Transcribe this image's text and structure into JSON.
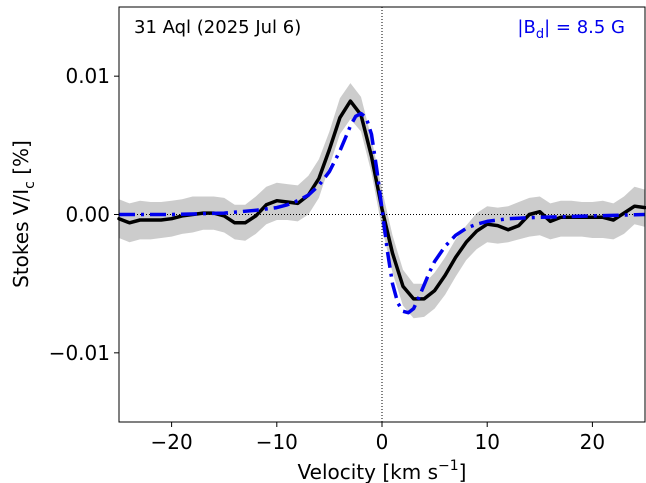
{
  "chart_data": {
    "type": "line",
    "annotations": {
      "star": "31 Aql (2025 Jul 6)",
      "field": "|B_d| = 8.5 G",
      "field_prefix": "|B",
      "field_sub": "d",
      "field_suffix": "| = 8.5 G"
    },
    "xlabel": "Velocity [km s⁻¹]",
    "xlabel_main": "Velocity [km s",
    "xlabel_sup": "−1",
    "xlabel_end": "]",
    "ylabel": "Stokes V/I_c [%]",
    "ylabel_main": "Stokes V/I",
    "ylabel_sub": "c",
    "ylabel_end": " [%]",
    "xlim": [
      -25,
      25
    ],
    "ylim": [
      -0.015,
      0.015
    ],
    "xticks": [
      -20,
      -10,
      0,
      10,
      20
    ],
    "xtick_labels": [
      "−20",
      "−10",
      "0",
      "10",
      "20"
    ],
    "yticks": [
      0.01,
      0.0,
      -0.01
    ],
    "ytick_labels": [
      "0.01",
      "0.00",
      "−0.01"
    ],
    "grid": false,
    "reference_lines": {
      "x": 0,
      "y": 0
    },
    "series": [
      {
        "kind": "band",
        "color": "#cccccc",
        "x": [
          -25,
          -24,
          -23,
          -22,
          -21,
          -20,
          -19,
          -18,
          -17,
          -16,
          -15,
          -14,
          -13,
          -12,
          -11,
          -10,
          -9,
          -8,
          -7,
          -6,
          -5,
          -4,
          -3,
          -2,
          -1,
          0,
          1,
          2,
          3,
          4,
          5,
          6,
          7,
          8,
          9,
          10,
          11,
          12,
          13,
          14,
          15,
          16,
          17,
          18,
          19,
          20,
          21,
          22,
          23,
          24,
          25
        ],
        "upper": [
          0.0011,
          0.0008,
          0.001,
          0.0009,
          0.0009,
          0.001,
          0.0011,
          0.0013,
          0.0013,
          0.0013,
          0.0012,
          0.0007,
          0.0007,
          0.0013,
          0.002,
          0.0023,
          0.0022,
          0.0021,
          0.0028,
          0.004,
          0.006,
          0.0084,
          0.0095,
          0.0085,
          0.0055,
          0.0018,
          -0.0015,
          -0.004,
          -0.005,
          -0.005,
          -0.0042,
          -0.0031,
          -0.0018,
          -0.0008,
          0.0001,
          0.0006,
          0.0005,
          0.0006,
          0.0009,
          0.0012,
          0.0013,
          0.0008,
          0.001,
          0.001,
          0.0009,
          0.0009,
          0.001,
          0.0008,
          0.0013,
          0.002,
          0.0018
        ],
        "lower": [
          -0.0017,
          -0.002,
          -0.0018,
          -0.0018,
          -0.0017,
          -0.0016,
          -0.0014,
          -0.0013,
          -0.0011,
          -0.0011,
          -0.0013,
          -0.0018,
          -0.0019,
          -0.0014,
          -0.0007,
          -0.0004,
          -0.0004,
          -0.0005,
          0.0,
          0.0012,
          0.0035,
          0.0058,
          0.0069,
          0.006,
          0.003,
          -0.001,
          -0.0042,
          -0.0066,
          -0.0075,
          -0.0074,
          -0.0068,
          -0.0058,
          -0.0045,
          -0.0033,
          -0.0025,
          -0.002,
          -0.0021,
          -0.002,
          -0.0018,
          -0.0016,
          -0.0015,
          -0.0018,
          -0.0016,
          -0.0016,
          -0.0016,
          -0.0017,
          -0.0017,
          -0.0018,
          -0.0014,
          -0.0007,
          -0.0009
        ]
      },
      {
        "kind": "line",
        "color": "#000000",
        "style": "solid",
        "x": [
          -25,
          -24,
          -23,
          -22,
          -21,
          -20,
          -19,
          -18,
          -17,
          -16,
          -15,
          -14,
          -13,
          -12,
          -11,
          -10,
          -9,
          -8,
          -7,
          -6,
          -5,
          -4,
          -3,
          -2,
          -1,
          0,
          1,
          2,
          3,
          4,
          5,
          6,
          7,
          8,
          9,
          10,
          11,
          12,
          13,
          14,
          15,
          16,
          17,
          18,
          19,
          20,
          21,
          22,
          23,
          24,
          25
        ],
        "values": [
          -0.0003,
          -0.0006,
          -0.0004,
          -0.0004,
          -0.0004,
          -0.0003,
          -0.0001,
          0.0,
          0.0001,
          0.0001,
          -0.0001,
          -0.0006,
          -0.0006,
          -0.0001,
          0.0007,
          0.001,
          0.0009,
          0.0008,
          0.0014,
          0.0026,
          0.0047,
          0.007,
          0.0082,
          0.0072,
          0.0042,
          0.0004,
          -0.0028,
          -0.0052,
          -0.0061,
          -0.0061,
          -0.0055,
          -0.0044,
          -0.0031,
          -0.002,
          -0.0012,
          -0.0007,
          -0.0008,
          -0.0011,
          -0.0008,
          0.0,
          0.0002,
          -0.0005,
          -0.0002,
          -0.0002,
          -0.0002,
          -0.0002,
          -0.0002,
          -0.0004,
          0.0001,
          0.0006,
          0.0005
        ]
      },
      {
        "kind": "line",
        "color": "#0000ee",
        "style": "dash-dot",
        "x": [
          -25,
          -20,
          -15,
          -12,
          -10,
          -9,
          -8,
          -7,
          -6,
          -5,
          -4,
          -3.5,
          -3,
          -2.5,
          -2,
          -1.5,
          -1,
          -0.5,
          0,
          0.5,
          1,
          1.5,
          2,
          2.5,
          3,
          3.5,
          4,
          4.5,
          5,
          6,
          7,
          8,
          9,
          10,
          12,
          15,
          20,
          25
        ],
        "values": [
          0.0,
          0.0,
          0.0001,
          0.0003,
          0.0005,
          0.0007,
          0.001,
          0.0014,
          0.0021,
          0.0031,
          0.0046,
          0.0055,
          0.0064,
          0.0071,
          0.0073,
          0.007,
          0.0058,
          0.0033,
          0.0004,
          -0.0026,
          -0.005,
          -0.0064,
          -0.007,
          -0.0071,
          -0.0068,
          -0.006,
          -0.0051,
          -0.0042,
          -0.0034,
          -0.0023,
          -0.0015,
          -0.001,
          -0.0007,
          -0.0005,
          -0.0003,
          -0.0002,
          -0.0001,
          0.0
        ]
      }
    ]
  }
}
